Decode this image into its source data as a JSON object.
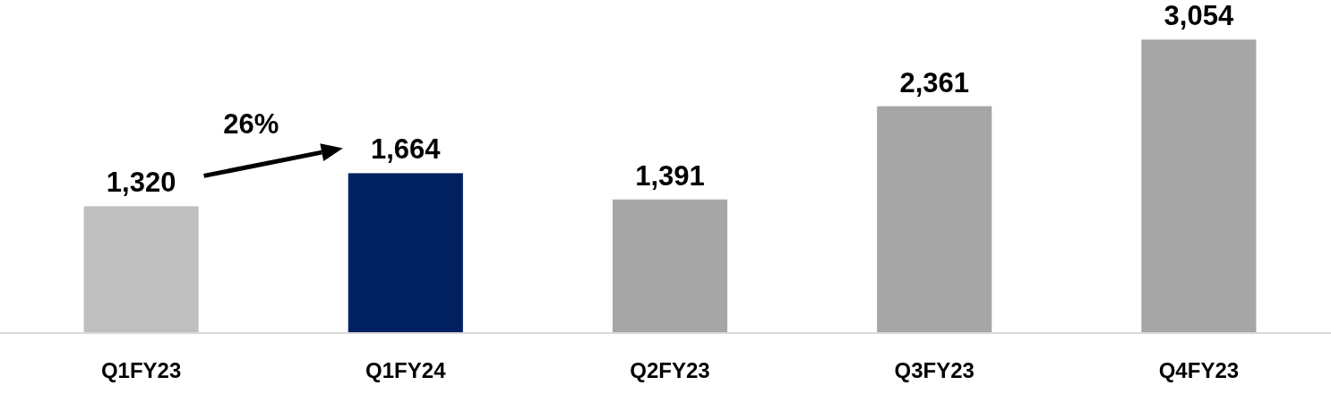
{
  "chart_data": {
    "type": "bar",
    "categories": [
      "Q1FY23",
      "Q1FY24",
      "Q2FY23",
      "Q3FY23",
      "Q4FY23"
    ],
    "values": [
      1320,
      1664,
      1391,
      2361,
      3054
    ],
    "value_labels": [
      "1,320",
      "1,664",
      "1,391",
      "2,361",
      "3,054"
    ],
    "colors": [
      "#bfbfbf",
      "#002060",
      "#a6a6a6",
      "#a6a6a6",
      "#a6a6a6"
    ],
    "tick_labels": "x",
    "annotations": [
      "26%"
    ]
  }
}
